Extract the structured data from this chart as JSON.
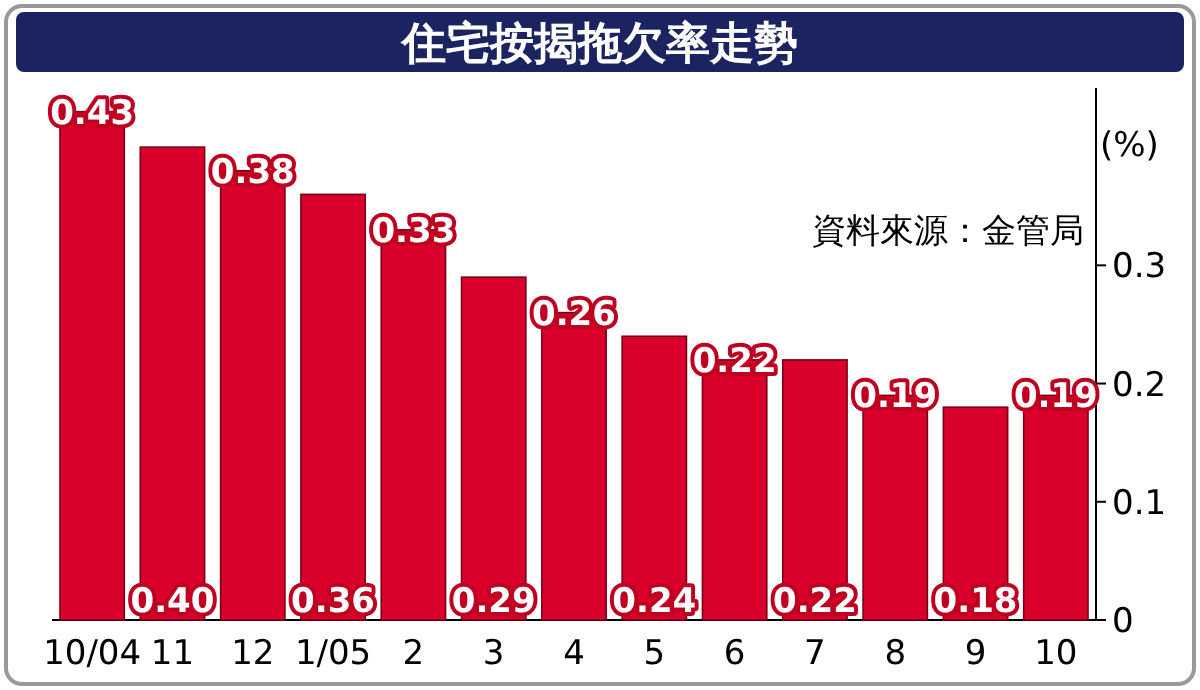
{
  "chart_data": {
    "type": "bar",
    "title": "住宅按揭拖欠率走勢",
    "categories": [
      "10/04",
      "11",
      "12",
      "1/05",
      "2",
      "3",
      "4",
      "5",
      "6",
      "7",
      "8",
      "9",
      "10"
    ],
    "values": [
      0.43,
      0.4,
      0.38,
      0.36,
      0.33,
      0.29,
      0.26,
      0.24,
      0.22,
      0.22,
      0.19,
      0.18,
      0.19
    ],
    "color": "#d9002b",
    "ylim": [
      0,
      0.45
    ],
    "yticks": [
      0,
      0.1,
      0.2,
      0.3
    ],
    "ylabel": "(%)",
    "annotations": [
      "資料來源：金管局"
    ],
    "value_labels": [
      "0.43",
      "0.40",
      "0.38",
      "0.36",
      "0.33",
      "0.29",
      "0.26",
      "0.24",
      "0.22",
      "0.22",
      "0.19",
      "0.18",
      "0.19"
    ]
  }
}
